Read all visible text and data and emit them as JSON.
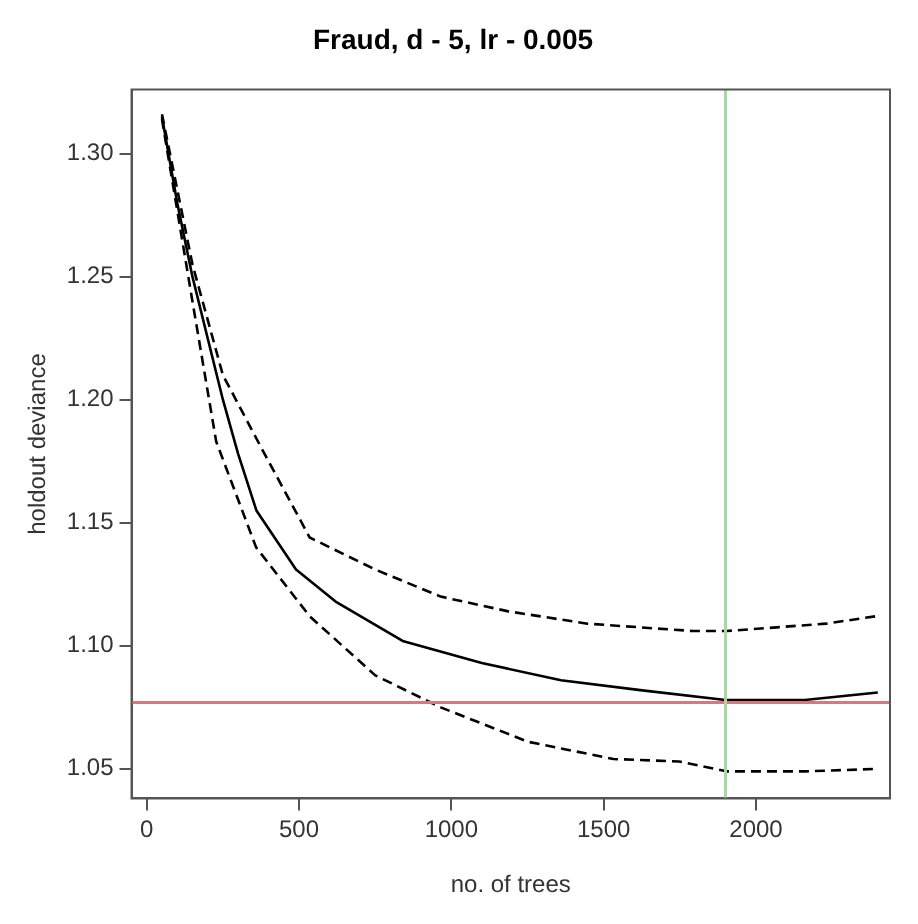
{
  "chart_data": {
    "type": "line",
    "title": "Fraud, d - 5, lr - 0.005",
    "xlabel": "no. of trees",
    "ylabel": "holdout deviance",
    "xlim": [
      -50,
      2440
    ],
    "xticks": [
      0,
      500,
      1000,
      1500,
      2000
    ],
    "ylim": [
      1.038,
      1.326
    ],
    "yticks": [
      1.05,
      {
        "value": 1.1,
        "label": "1.10"
      },
      1.15,
      {
        "value": 1.2,
        "label": "1.20"
      },
      1.25,
      {
        "value": 1.3,
        "label": "1.30"
      }
    ],
    "grid": false,
    "legend": false,
    "marker": "none",
    "series": [
      {
        "color": "#000000",
        "line_style": "solid",
        "x": [
          50,
          100,
          150,
          250,
          300,
          360,
          490,
          620,
          840,
          1100,
          1360,
          1620,
          1900,
          2160,
          2400
        ],
        "values": [
          1.315,
          1.28,
          1.25,
          1.2,
          1.178,
          1.155,
          1.131,
          1.118,
          1.102,
          1.093,
          1.086,
          1.082,
          1.078,
          1.078,
          1.081
        ]
      },
      {
        "color": "#000000",
        "line_style": "dashed",
        "x": [
          50,
          150,
          250,
          378,
          535,
          750,
          965,
          1187,
          1447,
          1793,
          1903,
          2230,
          2393
        ],
        "values": [
          1.316,
          1.255,
          1.21,
          1.18,
          1.144,
          1.131,
          1.12,
          1.114,
          1.109,
          1.106,
          1.106,
          1.109,
          1.112
        ]
      },
      {
        "color": "#000000",
        "line_style": "dashed",
        "x": [
          50,
          150,
          228,
          359,
          535,
          750,
          965,
          1252,
          1532,
          1747,
          1903,
          2164,
          2400
        ],
        "values": [
          1.314,
          1.24,
          1.183,
          1.14,
          1.112,
          1.088,
          1.075,
          1.061,
          1.054,
          1.053,
          1.049,
          1.049,
          1.05
        ]
      }
    ],
    "ref_lines": [
      {
        "axis": "y",
        "value": 1.077,
        "color": "#d9777f"
      },
      {
        "axis": "x",
        "value": 1900,
        "color": "#a8d8a0"
      }
    ]
  }
}
